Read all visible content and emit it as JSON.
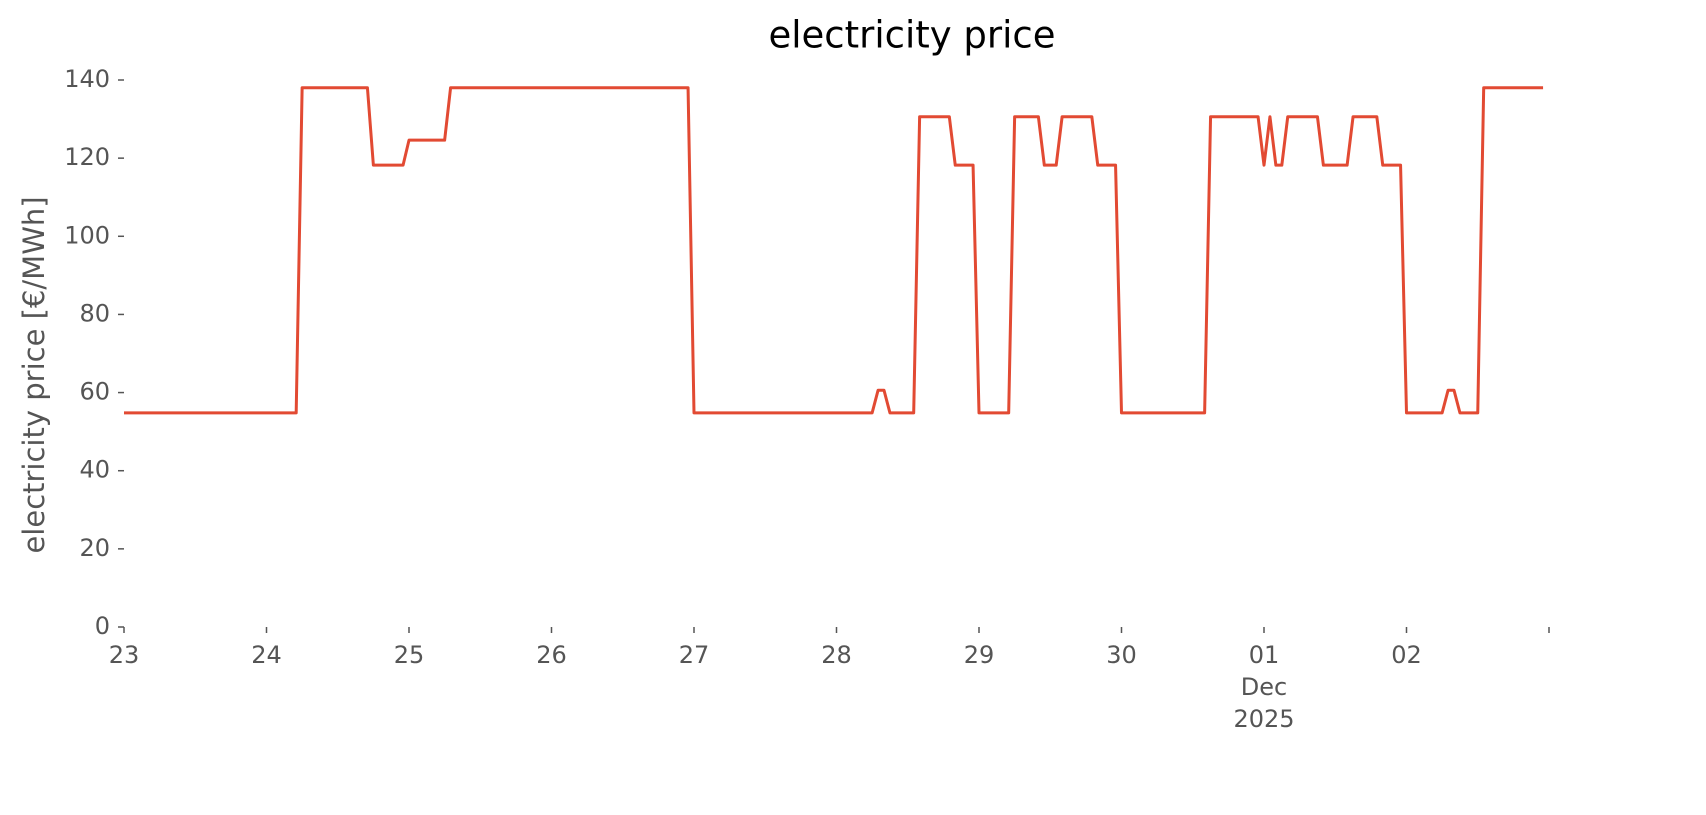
{
  "chart_data": {
    "type": "line",
    "title": "electricity price",
    "ylabel": "electricity price [€/MWh]",
    "x": [
      23,
      24.2083,
      24.25,
      24.7083,
      24.75,
      24.9583,
      25,
      25.25,
      25.2917,
      26.9583,
      27,
      28.25,
      28.2917,
      28.3333,
      28.375,
      28.5417,
      28.5833,
      28.7917,
      28.8333,
      28.9583,
      29,
      29.2083,
      29.25,
      29.4167,
      29.4583,
      29.5417,
      29.5833,
      29.7917,
      29.8333,
      29.9583,
      30,
      30.5833,
      30.625,
      30.9583,
      31,
      31.0417,
      31.0833,
      31.125,
      31.1667,
      31.375,
      31.4167,
      31.5833,
      31.625,
      31.7917,
      31.8333,
      31.9583,
      32,
      32.25,
      32.2917,
      32.3333,
      32.375,
      32.5,
      32.5417,
      32.9583
    ],
    "series": [
      {
        "name": "electricity price",
        "color": "#e24a33",
        "values": [
          54.8,
          54.8,
          138,
          138,
          118.2,
          118.2,
          124.6,
          124.6,
          138,
          138,
          54.8,
          54.8,
          60.6,
          60.6,
          54.8,
          54.8,
          130.6,
          130.6,
          118.2,
          118.2,
          54.8,
          54.8,
          130.6,
          130.6,
          118.2,
          118.2,
          130.6,
          130.6,
          118.2,
          118.2,
          54.8,
          54.8,
          130.6,
          130.6,
          118.2,
          130.6,
          118.2,
          118.2,
          130.6,
          130.6,
          118.2,
          118.2,
          130.6,
          130.6,
          118.2,
          118.2,
          54.8,
          54.8,
          60.6,
          60.6,
          54.8,
          54.8,
          138,
          138
        ]
      }
    ],
    "xlim": [
      23,
      33
    ],
    "xticks": [
      23,
      24,
      25,
      26,
      27,
      28,
      29,
      30,
      {
        "value": 31,
        "label": "01\nDec\n2025"
      },
      {
        "value": 32,
        "label": "02"
      },
      {
        "value": 33,
        "label": null
      }
    ],
    "ylim": [
      0,
      140
    ],
    "yticks": [
      0,
      20,
      40,
      60,
      80,
      100,
      120,
      140
    ],
    "grid": false
  }
}
